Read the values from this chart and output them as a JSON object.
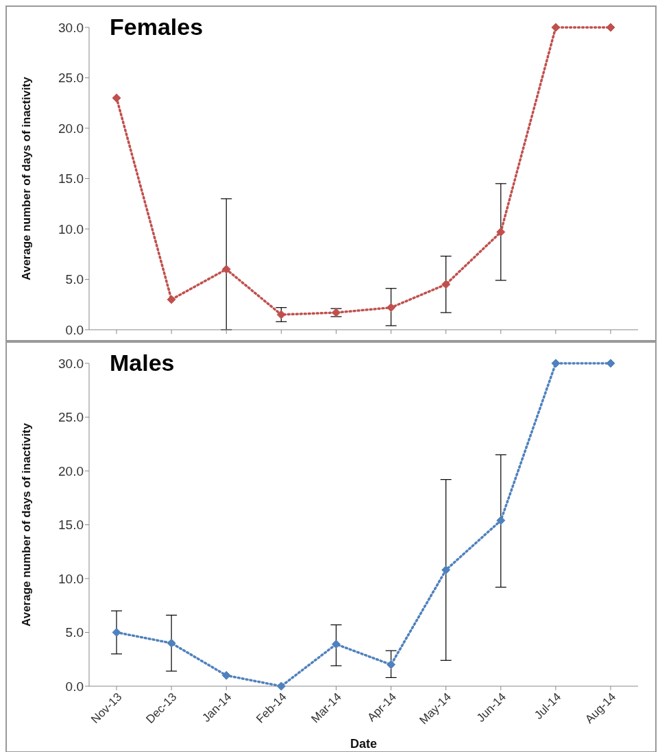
{
  "chart_data": [
    {
      "type": "line",
      "title": "Females",
      "ylabel": "Average number of days of inactivity",
      "categories": [
        null,
        null,
        null,
        null,
        null,
        null,
        null,
        null,
        null,
        null
      ],
      "series": [
        {
          "color": "#c0504d",
          "values": [
            23.0,
            3.0,
            6.0,
            1.5,
            1.7,
            2.2,
            4.5,
            9.7,
            30.0,
            30.0
          ],
          "errors": [
            null,
            null,
            [
              0.0,
              13.0
            ],
            [
              0.8,
              2.2
            ],
            [
              1.3,
              2.1
            ],
            [
              0.4,
              4.1
            ],
            [
              1.7,
              7.3
            ],
            [
              4.9,
              14.5
            ],
            null,
            null
          ]
        }
      ],
      "ylim": [
        0,
        30
      ],
      "yticks": [
        {
          "value": 0,
          "label": "0.0"
        },
        {
          "value": 5,
          "label": "5.0"
        },
        {
          "value": 10,
          "label": "10.0"
        },
        {
          "value": 15,
          "label": "15.0"
        },
        {
          "value": 20,
          "label": "20.0"
        },
        {
          "value": 25,
          "label": "25.0"
        },
        {
          "value": 30,
          "label": "30.0"
        }
      ],
      "tick_labels": "y",
      "marker": "diamond",
      "line_style": "dotted"
    },
    {
      "type": "line",
      "title": "Males",
      "xlabel": "Date",
      "ylabel": "Average number of days of inactivity",
      "categories": [
        "Nov-13",
        "Dec-13",
        "Jan-14",
        "Feb-14",
        "Mar-14",
        "Apr-14",
        "May-14",
        "Jun-14",
        "Jul-14",
        "Aug-14"
      ],
      "series": [
        {
          "color": "#4f81bd",
          "values": [
            5.0,
            4.0,
            1.0,
            0.0,
            3.9,
            2.0,
            10.8,
            15.4,
            30.0,
            30.0
          ],
          "errors": [
            [
              3.0,
              7.0
            ],
            [
              1.4,
              6.6
            ],
            null,
            null,
            [
              1.9,
              5.7
            ],
            [
              0.8,
              3.3
            ],
            [
              2.4,
              19.2
            ],
            [
              9.2,
              21.5
            ],
            null,
            null
          ]
        }
      ],
      "ylim": [
        0,
        30
      ],
      "yticks": [
        {
          "value": 0,
          "label": "0.0"
        },
        {
          "value": 5,
          "label": "5.0"
        },
        {
          "value": 10,
          "label": "10.0"
        },
        {
          "value": 15,
          "label": "15.0"
        },
        {
          "value": 20,
          "label": "20.0"
        },
        {
          "value": 25,
          "label": "25.0"
        },
        {
          "value": 30,
          "label": "30.0"
        }
      ],
      "marker": "diamond",
      "line_style": "dotted"
    }
  ]
}
